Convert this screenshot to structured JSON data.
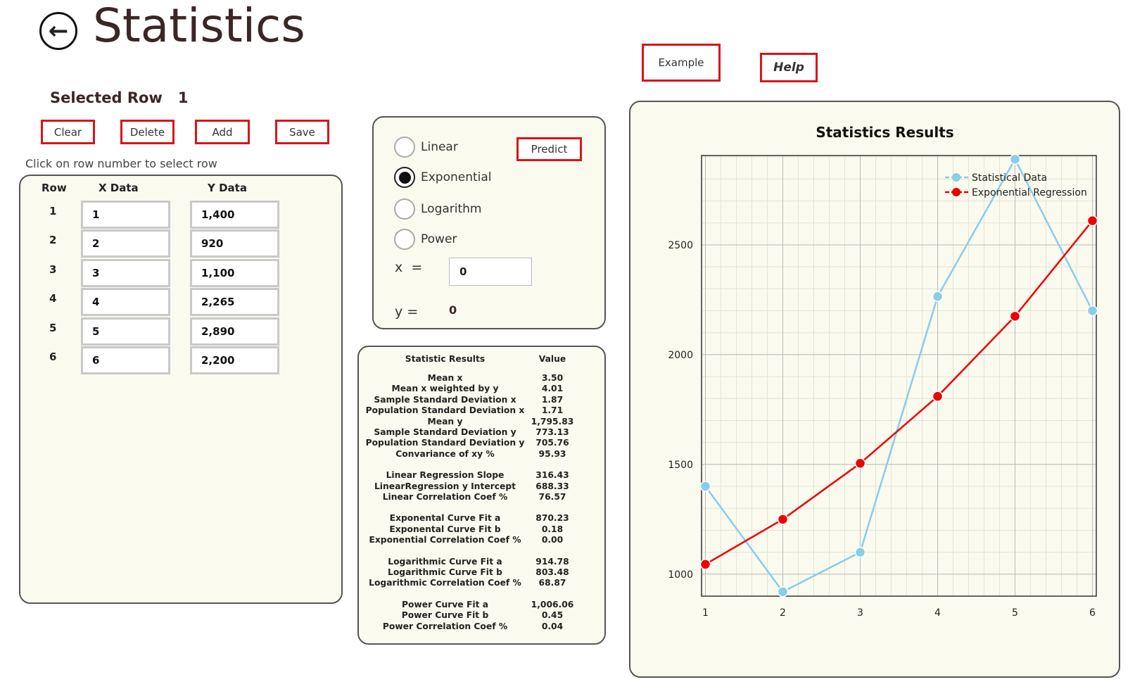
{
  "header": {
    "title": "Statistics",
    "back_icon": "arrow-left-circle-icon"
  },
  "top_buttons": {
    "example": "Example",
    "help": "Help"
  },
  "selected_row": {
    "label": "Selected Row",
    "value": "1"
  },
  "toolbar": {
    "clear": "Clear",
    "delete": "Delete",
    "add": "Add",
    "save": "Save"
  },
  "hint": "Click on row number to select row",
  "table": {
    "headers": [
      "Row",
      "X Data",
      "Y Data"
    ],
    "rows": [
      {
        "row": "1",
        "x": "1",
        "y": "1,400"
      },
      {
        "row": "2",
        "x": "2",
        "y": "920"
      },
      {
        "row": "3",
        "x": "3",
        "y": "1,100"
      },
      {
        "row": "4",
        "x": "4",
        "y": "2,265"
      },
      {
        "row": "5",
        "x": "5",
        "y": "2,890"
      },
      {
        "row": "6",
        "x": "6",
        "y": "2,200"
      }
    ]
  },
  "regression": {
    "options": [
      "Linear",
      "Exponential",
      "Logarithm",
      "Power"
    ],
    "selected": "Exponential",
    "predict": "Predict",
    "x_label": "x  =",
    "x_value": "0",
    "y_label": "y =",
    "y_value": "0"
  },
  "stats": {
    "header_name": "Statistic Results",
    "header_value": "Value",
    "groups": [
      [
        [
          "Mean x",
          "3.50"
        ],
        [
          "Mean x weighted by y",
          "4.01"
        ],
        [
          "Sample Standard Deviation x",
          "1.87"
        ],
        [
          "Population Standard Deviation x",
          "1.71"
        ],
        [
          "Mean y",
          "1,795.83"
        ],
        [
          "Sample Standard Deviation y",
          "773.13"
        ],
        [
          "Population Standard Deviation y",
          "705.76"
        ],
        [
          "Convariance of xy  %",
          "95.93"
        ]
      ],
      [
        [
          "Linear Regression Slope",
          "316.43"
        ],
        [
          "LinearRegression y Intercept",
          "688.33"
        ],
        [
          "Linear Correlation Coef %",
          "76.57"
        ]
      ],
      [
        [
          "Exponental Curve Fit a",
          "870.23"
        ],
        [
          "Exponental Curve Fit b",
          "0.18"
        ],
        [
          "Exponential Correlation Coef %",
          "0.00"
        ]
      ],
      [
        [
          "Logarithmic Curve Fit a",
          "914.78"
        ],
        [
          "Logarithmic Curve Fit b",
          "803.48"
        ],
        [
          "Logarithmic Correlation Coef %",
          "68.87"
        ]
      ],
      [
        [
          "Power Curve Fit a",
          "1,006.06"
        ],
        [
          "Power Curve Fit b",
          "0.45"
        ],
        [
          "Power Correlation Coef %",
          "0.04"
        ]
      ]
    ]
  },
  "chart_data": {
    "type": "line",
    "title": "Statistics Results",
    "x": [
      1,
      2,
      3,
      4,
      5,
      6
    ],
    "series": [
      {
        "name": "Statistical Data",
        "color": "#87ceeb",
        "values": [
          1400,
          920,
          1100,
          2265,
          2890,
          2200
        ]
      },
      {
        "name": "Exponential Regression",
        "color": "#ee0000",
        "values": [
          1045,
          1250,
          1505,
          1810,
          2175,
          2610
        ]
      }
    ],
    "xlim": [
      0.95,
      6.05
    ],
    "ylim": [
      900,
      2907
    ],
    "xticks": [
      1,
      2,
      3,
      4,
      5,
      6
    ],
    "yticks": [
      1000,
      1500,
      2000,
      2500
    ],
    "grid": true,
    "legend": "top-right"
  }
}
